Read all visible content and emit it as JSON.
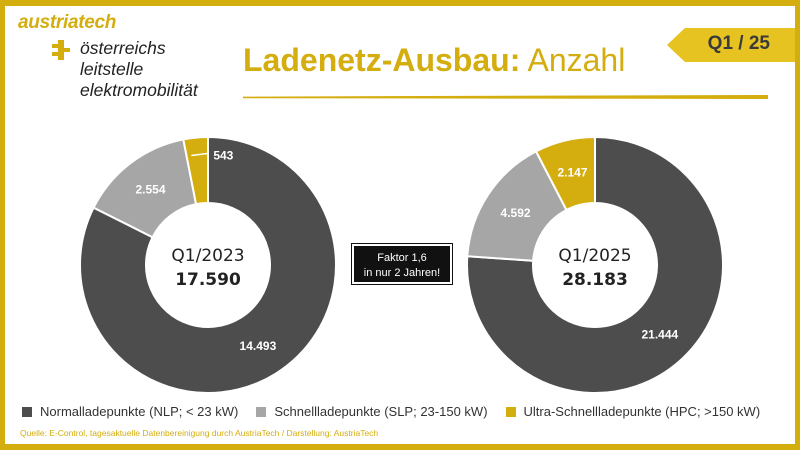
{
  "brand": {
    "name": "austriatech",
    "org_lines": [
      "österreichs",
      "leitstelle",
      "elektromobilität"
    ]
  },
  "header": {
    "title_bold": "Ladenetz-Ausbau:",
    "title_light": " Anzahl",
    "period_tab": "Q1 / 25"
  },
  "annotation": {
    "line1": "Faktor 1,6",
    "line2": "in nur 2 Jahren!"
  },
  "colors": {
    "nlp": "#4d4d4d",
    "slp": "#a6a6a6",
    "hpc": "#d4ad0e",
    "accent": "#d4ad0e"
  },
  "chart_data": [
    {
      "type": "pie",
      "title": "Q1/2023",
      "total_label": "17.590",
      "categories": [
        "Normalladepunkte (NLP; < 23 kW)",
        "Schnellladepunkte (SLP; 23-150 kW)",
        "Ultra-Schnellladepunkte (HPC; >150 kW)"
      ],
      "values": [
        14493,
        2554,
        543
      ],
      "value_labels": [
        "14.493",
        "2.554",
        "543"
      ]
    },
    {
      "type": "pie",
      "title": "Q1/2025",
      "total_label": "28.183",
      "categories": [
        "Normalladepunkte (NLP; < 23 kW)",
        "Schnellladepunkte (SLP; 23-150 kW)",
        "Ultra-Schnellladepunkte (HPC; >150 kW)"
      ],
      "values": [
        21444,
        4592,
        2147
      ],
      "value_labels": [
        "21.444",
        "4.592",
        "2.147"
      ]
    }
  ],
  "legend": [
    {
      "label": "Normalladepunkte (NLP; < 23 kW)",
      "color": "#4d4d4d"
    },
    {
      "label": "Schnellladepunkte (SLP; 23-150 kW)",
      "color": "#a6a6a6"
    },
    {
      "label": "Ultra-Schnellladepunkte (HPC; >150 kW)",
      "color": "#d4ad0e"
    }
  ],
  "source": "Quelle: E-Control, tagesaktuelle Datenbereinigung durch AustriaTech / Darstellung: AustriaTech"
}
